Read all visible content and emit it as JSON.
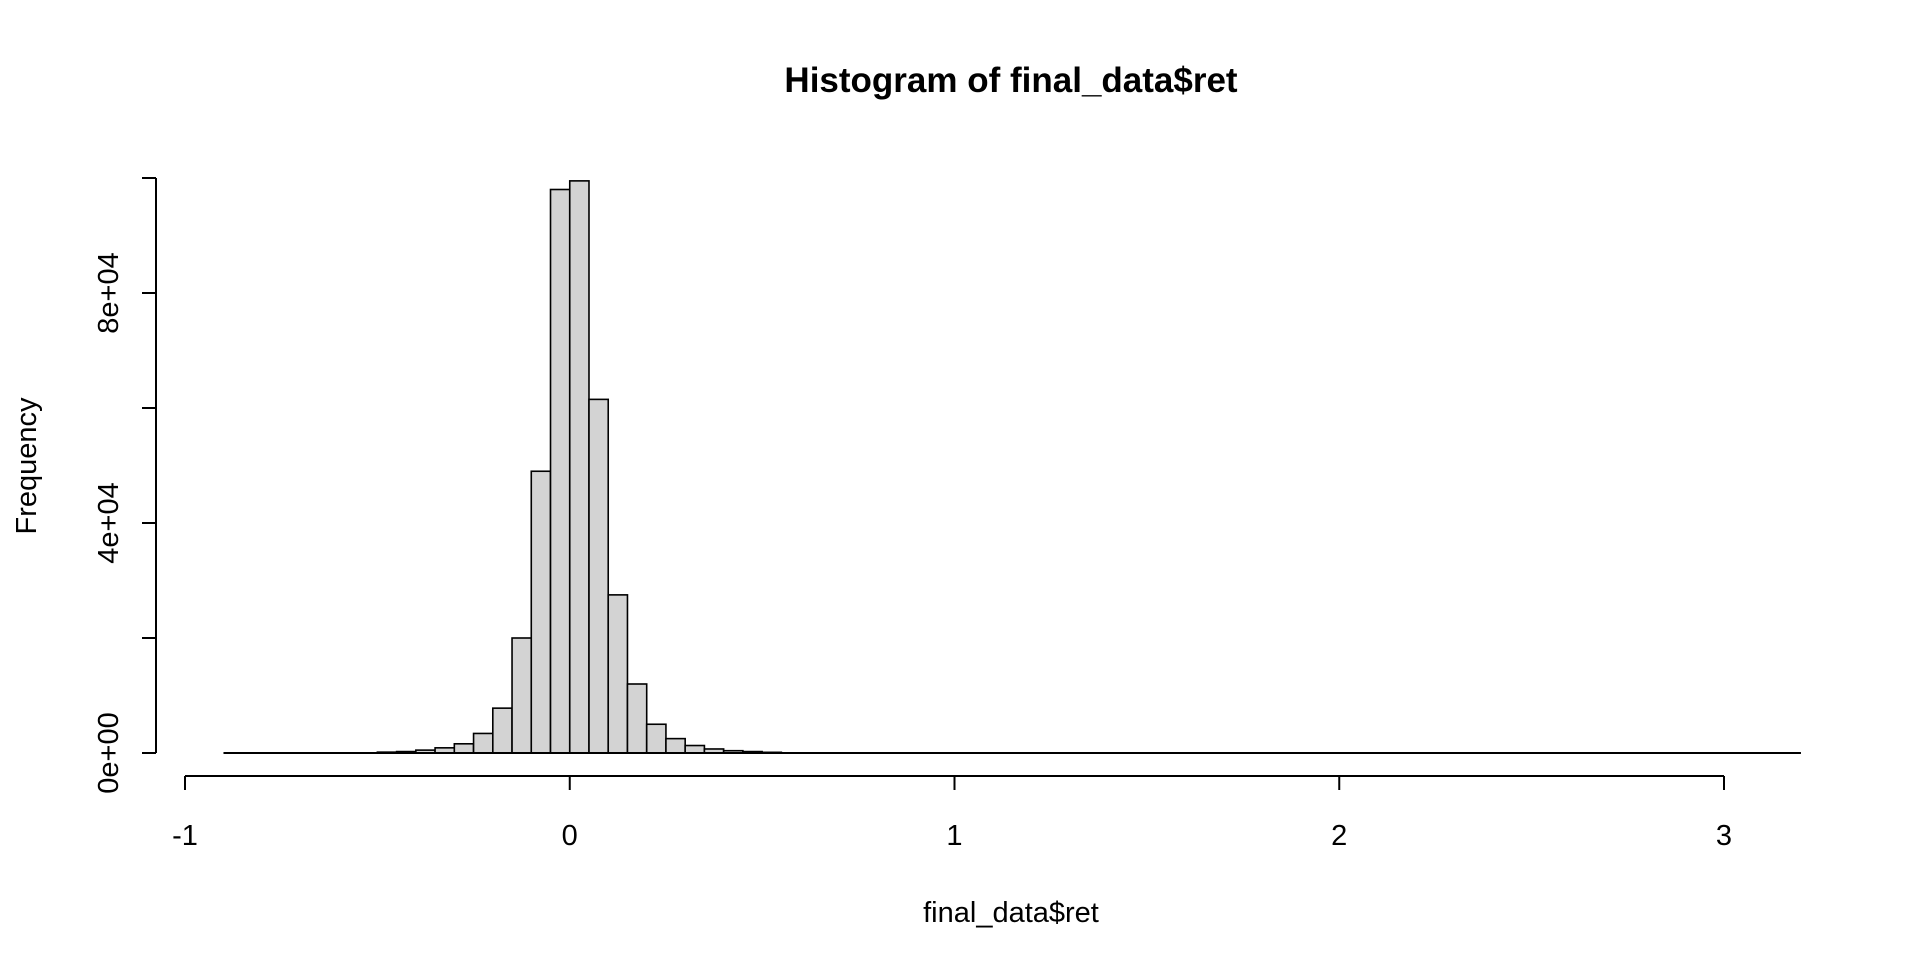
{
  "chart_data": {
    "type": "bar",
    "title": "Histogram of final_data$ret",
    "xlabel": "final_data$ret",
    "ylabel": "Frequency",
    "x_axis": {
      "range": [
        -1,
        3
      ],
      "ticks": [
        -1,
        0,
        1,
        2,
        3
      ],
      "tick_labels": [
        "-1",
        "0",
        "1",
        "2",
        "3"
      ]
    },
    "y_axis": {
      "range": [
        0,
        100000
      ],
      "ticks": [
        0,
        20000,
        40000,
        60000,
        80000,
        100000
      ],
      "tick_labels": [
        "0e+00",
        "",
        "4e+04",
        "",
        "8e+04",
        ""
      ]
    },
    "bin_width": 0.05,
    "bins": [
      {
        "x0": -0.5,
        "x1": -0.45,
        "count": 150
      },
      {
        "x0": -0.45,
        "x1": -0.4,
        "count": 250
      },
      {
        "x0": -0.4,
        "x1": -0.35,
        "count": 500
      },
      {
        "x0": -0.35,
        "x1": -0.3,
        "count": 900
      },
      {
        "x0": -0.3,
        "x1": -0.25,
        "count": 1600
      },
      {
        "x0": -0.25,
        "x1": -0.2,
        "count": 3400
      },
      {
        "x0": -0.2,
        "x1": -0.15,
        "count": 7800
      },
      {
        "x0": -0.15,
        "x1": -0.1,
        "count": 20000
      },
      {
        "x0": -0.1,
        "x1": -0.05,
        "count": 49000
      },
      {
        "x0": -0.05,
        "x1": 0.0,
        "count": 98000
      },
      {
        "x0": 0.0,
        "x1": 0.05,
        "count": 99500
      },
      {
        "x0": 0.05,
        "x1": 0.1,
        "count": 61500
      },
      {
        "x0": 0.1,
        "x1": 0.15,
        "count": 27500
      },
      {
        "x0": 0.15,
        "x1": 0.2,
        "count": 12000
      },
      {
        "x0": 0.2,
        "x1": 0.25,
        "count": 5000
      },
      {
        "x0": 0.25,
        "x1": 0.3,
        "count": 2500
      },
      {
        "x0": 0.3,
        "x1": 0.35,
        "count": 1300
      },
      {
        "x0": 0.35,
        "x1": 0.4,
        "count": 700
      },
      {
        "x0": 0.4,
        "x1": 0.45,
        "count": 400
      },
      {
        "x0": 0.45,
        "x1": 0.5,
        "count": 250
      },
      {
        "x0": 0.5,
        "x1": 0.55,
        "count": 120
      }
    ],
    "data_extent": [
      -0.9,
      3.2
    ],
    "bar_fill": "#d3d3d3",
    "bar_stroke": "#000000",
    "grid": false,
    "legend": "none"
  }
}
